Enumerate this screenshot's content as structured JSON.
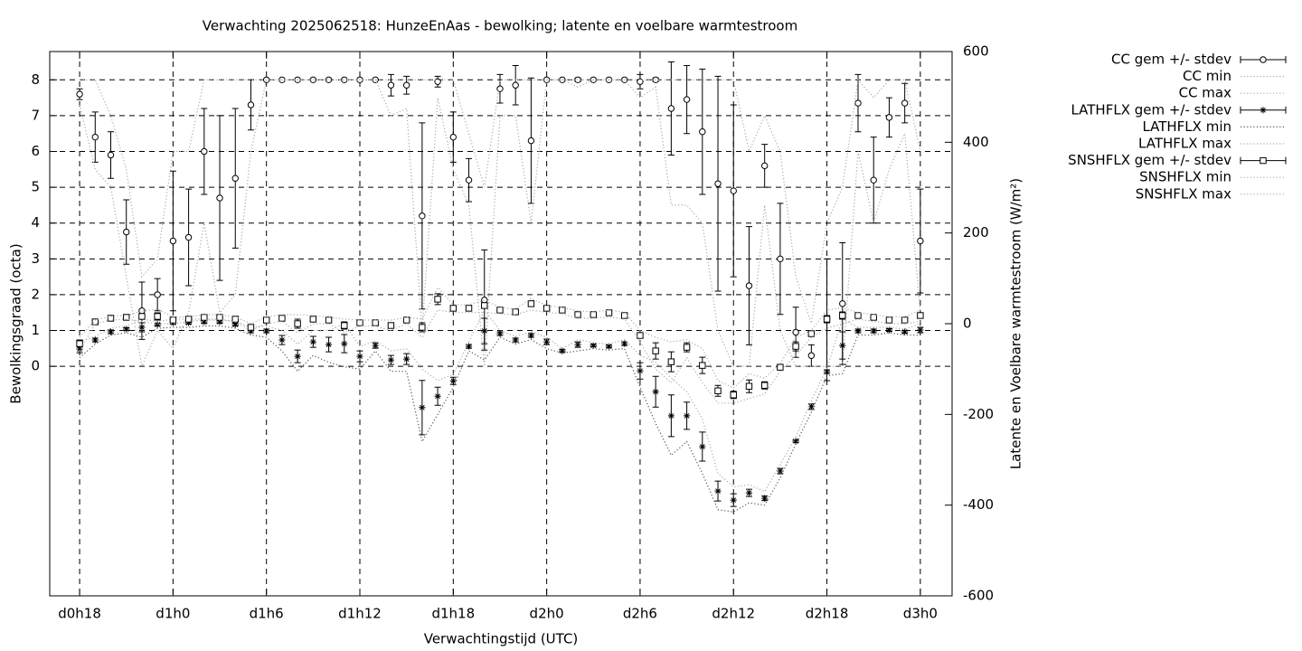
{
  "chart_data": {
    "type": "errorbar",
    "title": "Verwachting 2025062518: HunzeEnAas - bewolking; latente en voelbare warmtestroom",
    "xlabel": "Verwachtingstijd (UTC)",
    "ylabel": "Bewolkingsgraad (octa)",
    "y2label": "Latente en Voelbare warmtestroom (W/m²)",
    "x": [
      18,
      19,
      20,
      21,
      22,
      23,
      24,
      25,
      26,
      27,
      28,
      29,
      30,
      31,
      32,
      33,
      34,
      35,
      36,
      37,
      38,
      39,
      40,
      41,
      42,
      43,
      44,
      45,
      46,
      47,
      48,
      49,
      50,
      51,
      52,
      53,
      54,
      55,
      56,
      57,
      58,
      59,
      60,
      61,
      62,
      63,
      64,
      65,
      66,
      67,
      68,
      69,
      70,
      71,
      72
    ],
    "xlim": [
      16.08,
      74.04
    ],
    "xticks": [
      {
        "value": 18,
        "label": "d0h18"
      },
      {
        "value": 24,
        "label": "d1h0"
      },
      {
        "value": 30,
        "label": "d1h6"
      },
      {
        "value": 36,
        "label": "d1h12"
      },
      {
        "value": 42,
        "label": "d1h18"
      },
      {
        "value": 48,
        "label": "d2h0"
      },
      {
        "value": 54,
        "label": "d2h6"
      },
      {
        "value": 60,
        "label": "d2h12"
      },
      {
        "value": 66,
        "label": "d2h18"
      },
      {
        "value": 72,
        "label": "d3h0"
      }
    ],
    "ylim": [
      -6.41,
      8.79
    ],
    "yticks": [
      0,
      1,
      2,
      3,
      4,
      5,
      6,
      7,
      8
    ],
    "y2lim": [
      -600,
      600
    ],
    "y2ticks": [
      -600,
      -400,
      -200,
      0,
      200,
      400,
      600
    ],
    "grid": true,
    "legend": "outside-right",
    "series": [
      {
        "name": "CC gem +/- stdev",
        "color": "#000000",
        "marker": "circle",
        "axis": "y",
        "values": [
          7.6,
          6.4,
          5.9,
          3.75,
          1.55,
          2.0,
          3.5,
          3.6,
          6.0,
          4.7,
          5.25,
          7.3,
          8,
          8,
          8,
          8,
          8,
          8,
          8,
          8,
          7.85,
          7.85,
          4.2,
          7.95,
          6.4,
          5.2,
          1.85,
          7.75,
          7.85,
          6.3,
          8,
          8,
          8,
          8,
          8,
          8,
          7.95,
          8,
          7.2,
          7.45,
          6.55,
          5.1,
          4.9,
          2.25,
          5.6,
          3.0,
          0.95,
          0.3,
          1.3,
          1.75,
          7.35,
          5.2,
          6.95,
          7.35,
          3.5
        ],
        "errors": [
          0.15,
          0.7,
          0.65,
          0.9,
          0.8,
          0.45,
          1.95,
          1.35,
          1.2,
          2.3,
          1.95,
          0.7,
          0,
          0,
          0,
          0,
          0,
          0,
          0,
          0,
          0.3,
          0.25,
          2.6,
          0.15,
          0.7,
          0.6,
          1.4,
          0.4,
          0.55,
          1.75,
          0,
          0,
          0.05,
          0,
          0,
          0,
          0.2,
          0.05,
          1.3,
          0.95,
          1.75,
          3.0,
          2.4,
          1.65,
          0.6,
          1.55,
          0.7,
          0.3,
          1.7,
          1.7,
          0.8,
          1.2,
          0.55,
          0.55,
          1.45
        ]
      },
      {
        "name": "CC min",
        "color": "#aaaaaa",
        "dash": "dotted",
        "axis": "y",
        "values": [
          7.3,
          5.5,
          5,
          2.5,
          0,
          1,
          0.5,
          1.5,
          4,
          1.5,
          2,
          6,
          8,
          8,
          8,
          8,
          8,
          8,
          8,
          8,
          7,
          7.2,
          1,
          7.5,
          5.5,
          4.5,
          0,
          7,
          7,
          4,
          8,
          8,
          7.8,
          8,
          8,
          8,
          7.5,
          7.8,
          4.5,
          4.5,
          4,
          1,
          0,
          0,
          4.5,
          1,
          0,
          0,
          0,
          0,
          6,
          4,
          5.5,
          6.5,
          1.5
        ]
      },
      {
        "name": "CC max",
        "color": "#aaaaaa",
        "dash": "dotted",
        "axis": "y",
        "values": [
          8,
          8,
          7,
          5.5,
          2.5,
          3,
          6,
          6,
          8,
          8,
          8,
          8,
          8,
          8,
          8,
          8,
          8,
          8,
          8,
          8,
          8,
          8,
          8,
          8,
          8,
          6.5,
          5,
          8,
          8,
          8,
          8,
          8,
          8,
          8,
          8,
          8,
          8,
          8,
          8,
          8,
          8,
          8,
          8,
          6,
          7,
          6,
          2.5,
          1.2,
          4,
          5,
          8,
          7.5,
          8,
          8,
          6
        ]
      },
      {
        "name": "LATHFLX gem +/- stdev",
        "color": "#000000",
        "marker": "star",
        "axis": "y2",
        "values": [
          -56,
          -36,
          -18,
          -12,
          -8,
          -2,
          2,
          2,
          4,
          4,
          -2,
          -16,
          -16,
          -36,
          -72,
          -40,
          -46,
          -44,
          -72,
          -48,
          -80,
          -78,
          -185,
          -160,
          -126,
          -50,
          -16,
          -22,
          -36,
          -26,
          -40,
          -60,
          -46,
          -48,
          -50,
          -44,
          -104,
          -150,
          -203,
          -203,
          -271,
          -369,
          -389,
          -373,
          -385,
          -325,
          -259,
          -183,
          -106,
          -48,
          -16,
          -16,
          -14,
          -18,
          -14
        ],
        "errors": [
          8,
          4,
          4,
          3,
          10,
          3,
          3,
          3,
          3,
          3,
          3,
          4,
          4,
          10,
          14,
          12,
          16,
          20,
          12,
          6,
          10,
          12,
          60,
          20,
          8,
          4,
          28,
          4,
          4,
          4,
          6,
          3,
          6,
          3,
          3,
          4,
          18,
          34,
          46,
          30,
          32,
          22,
          14,
          8,
          5,
          6,
          3,
          6,
          4,
          30,
          4,
          4,
          3,
          3,
          6
        ]
      },
      {
        "name": "LATHFLX min",
        "color": "#555555",
        "dash": "dotted",
        "axis": "y2",
        "values": [
          -75,
          -45,
          -25,
          -20,
          -30,
          -10,
          -8,
          -8,
          -5,
          -5,
          -10,
          -25,
          -30,
          -60,
          -105,
          -70,
          -85,
          -95,
          -100,
          -60,
          -105,
          -105,
          -260,
          -200,
          -140,
          -60,
          -80,
          -30,
          -45,
          -35,
          -55,
          -65,
          -60,
          -55,
          -58,
          -55,
          -140,
          -220,
          -290,
          -260,
          -330,
          -410,
          -415,
          -395,
          -400,
          -340,
          -265,
          -195,
          -115,
          -110,
          -25,
          -25,
          -20,
          -25,
          -25
        ]
      },
      {
        "name": "LATHFLX max",
        "color": "#aaaaaa",
        "dash": "dotted",
        "axis": "y2",
        "values": [
          -40,
          -28,
          -10,
          -5,
          10,
          5,
          10,
          10,
          10,
          10,
          5,
          -8,
          -5,
          -15,
          -45,
          -15,
          -15,
          0,
          -50,
          -38,
          -60,
          -55,
          -100,
          -125,
          -112,
          -40,
          30,
          -15,
          -28,
          -18,
          -30,
          -55,
          -35,
          -42,
          -45,
          -35,
          -70,
          -85,
          -120,
          -150,
          -210,
          -330,
          -360,
          -355,
          -370,
          -310,
          -250,
          -170,
          -98,
          10,
          -8,
          -8,
          -8,
          -12,
          0
        ]
      },
      {
        "name": "SNSHFLX gem +/- stdev",
        "color": "#000000",
        "marker": "square",
        "axis": "y2",
        "values": [
          -44,
          4,
          12,
          14,
          16,
          16,
          8,
          10,
          14,
          14,
          10,
          -8,
          8,
          12,
          0,
          10,
          8,
          -4,
          2,
          2,
          -4,
          8,
          -8,
          54,
          34,
          34,
          40,
          30,
          26,
          44,
          34,
          30,
          20,
          20,
          24,
          18,
          -26,
          -60,
          -84,
          -52,
          -92,
          -148,
          -157,
          -138,
          -136,
          -96,
          -50,
          -22,
          10,
          18,
          18,
          14,
          8,
          8,
          18
        ],
        "errors": [
          8,
          3,
          3,
          3,
          6,
          8,
          4,
          3,
          3,
          3,
          3,
          3,
          3,
          4,
          10,
          3,
          3,
          8,
          3,
          3,
          6,
          3,
          10,
          12,
          4,
          3,
          6,
          3,
          3,
          6,
          3,
          3,
          3,
          3,
          3,
          3,
          6,
          18,
          22,
          10,
          18,
          12,
          8,
          14,
          8,
          4,
          10,
          4,
          8,
          8,
          4,
          3,
          3,
          3,
          6
        ]
      },
      {
        "name": "SNSHFLX min",
        "color": "#aaaaaa",
        "dash": "dotted",
        "axis": "y2",
        "values": [
          -60,
          0,
          8,
          10,
          5,
          0,
          0,
          5,
          8,
          8,
          5,
          -15,
          0,
          5,
          -20,
          0,
          0,
          -20,
          -5,
          -5,
          -15,
          0,
          -30,
          30,
          25,
          25,
          25,
          22,
          20,
          30,
          25,
          22,
          12,
          12,
          15,
          10,
          -40,
          -100,
          -130,
          -75,
          -130,
          -175,
          -175,
          -165,
          -155,
          -105,
          -70,
          -30,
          -10,
          0,
          10,
          5,
          0,
          0,
          5
        ]
      },
      {
        "name": "SNSHFLX max",
        "color": "#aaaaaa",
        "dash": "dotted",
        "axis": "y2",
        "values": [
          -30,
          8,
          16,
          18,
          28,
          32,
          15,
          15,
          20,
          20,
          15,
          0,
          15,
          20,
          20,
          18,
          15,
          10,
          8,
          8,
          8,
          14,
          10,
          80,
          42,
          42,
          52,
          36,
          32,
          56,
          40,
          36,
          28,
          26,
          30,
          25,
          -15,
          -30,
          -40,
          -35,
          -55,
          -125,
          -142,
          -110,
          -120,
          -88,
          -30,
          -15,
          30,
          35,
          25,
          20,
          15,
          15,
          30
        ]
      }
    ]
  }
}
